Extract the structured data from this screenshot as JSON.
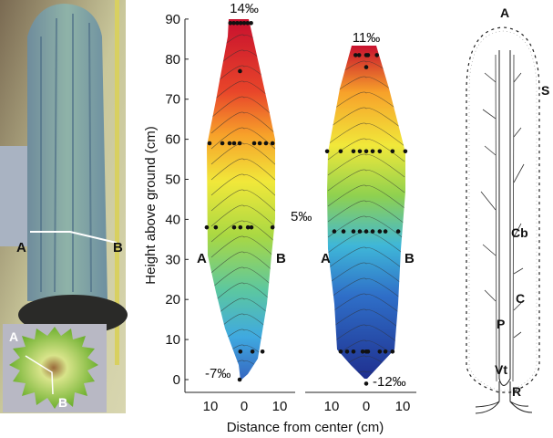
{
  "photo": {
    "point_a": "A",
    "point_b": "B",
    "inset_point_a": "A",
    "inset_point_b": "B"
  },
  "chart_data": [
    {
      "type": "heatmap",
      "subtype": "contour",
      "ylabel": "Height above ground (cm)",
      "xlabel": "Distance from center (cm)",
      "ylim": [
        0,
        90
      ],
      "yticks": [
        "0",
        "10",
        "20",
        "30",
        "40",
        "50",
        "60",
        "70",
        "80",
        "90"
      ],
      "xticks": [
        "10",
        "0",
        "10"
      ],
      "side_labels": {
        "left": "A",
        "right": "B"
      },
      "annotations": {
        "max": "14‰",
        "mid": "5‰",
        "min": "-7‰"
      },
      "color_scale": [
        "#2f4fb0",
        "#3fa9e0",
        "#5cc7a0",
        "#8fd14f",
        "#f1e83a",
        "#f7a12a",
        "#e8452a",
        "#c8102e"
      ],
      "sample_points": [
        {
          "height": 89,
          "distances": [
            -4,
            -3,
            -2,
            -1,
            0,
            1,
            2
          ]
        },
        {
          "height": 77,
          "distances": [
            -1.2
          ]
        },
        {
          "height": 59,
          "distances": [
            -10,
            -6.3,
            -4.2,
            -2.9,
            -1.3,
            2.9,
            4.5,
            6.3,
            8.2
          ]
        },
        {
          "height": 38,
          "distances": [
            -10.8,
            -8.2,
            -2.9,
            -1.1,
            1.1,
            2.1,
            8.2
          ]
        },
        {
          "height": 7,
          "distances": [
            -1.1,
            2.4,
            5.3
          ]
        },
        {
          "height": 0,
          "distances": [
            -1.3
          ]
        }
      ]
    },
    {
      "type": "heatmap",
      "subtype": "contour",
      "ylim": [
        0,
        90
      ],
      "xticks": [
        "10",
        "0",
        "10"
      ],
      "side_labels": {
        "left": "A",
        "right": "B"
      },
      "annotations": {
        "max": "11‰",
        "min": "-12‰"
      },
      "color_scale": [
        "#1f2f8f",
        "#2f4fb0",
        "#3fa9e0",
        "#5cc7a0",
        "#b9dc3c",
        "#f1e83a",
        "#f7a12a",
        "#c8102e"
      ],
      "sample_points": [
        {
          "height": 81,
          "distances": [
            -3,
            -2,
            0,
            0.5,
            3
          ]
        },
        {
          "height": 78,
          "distances": [
            0
          ]
        },
        {
          "height": 57,
          "distances": [
            -11,
            -7.2,
            -3.6,
            -1.8,
            0,
            1.8,
            3.8,
            7.4,
            11
          ]
        },
        {
          "height": 37,
          "distances": [
            -9,
            -6.4,
            -3.6,
            -1.8,
            0,
            1.8,
            3.8,
            5.4,
            9
          ]
        },
        {
          "height": 7,
          "distances": [
            -7.2,
            -5.4,
            -3.6,
            -1,
            0,
            0.5,
            3.8,
            5.4,
            7.4
          ]
        },
        {
          "height": -1,
          "distances": [
            0
          ]
        }
      ]
    }
  ],
  "diagram": {
    "labels": {
      "apex": "A",
      "skin": "S",
      "cambium": "Cb",
      "cortex": "C",
      "pith": "P",
      "vascular_tissue": "Vt",
      "roots": "R"
    }
  }
}
